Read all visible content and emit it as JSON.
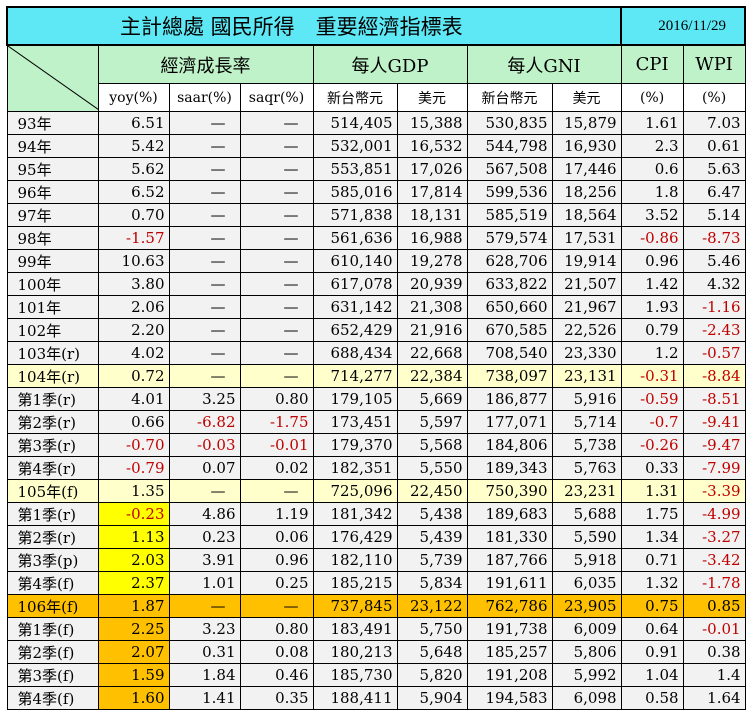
{
  "title": "主計總處 國民所得　重要經濟指標表",
  "date": "2016/11/29",
  "header1": [
    "經濟成長率",
    "每人GDP",
    "每人GNI",
    "CPI",
    "WPI"
  ],
  "header2": [
    "yoy(%)",
    "saar(%)",
    "saqr(%)",
    "新台幣元",
    "美元",
    "新台幣元",
    "美元",
    "(%)",
    "(%)"
  ],
  "rows": [
    {
      "label": "93年",
      "cells": [
        "6.51",
        "—",
        "—",
        "514,405",
        "15,388",
        "530,835",
        "15,879",
        "1.61",
        "7.03"
      ]
    },
    {
      "label": "94年",
      "cells": [
        "5.42",
        "—",
        "—",
        "532,001",
        "16,532",
        "544,798",
        "16,930",
        "2.3",
        "0.61"
      ]
    },
    {
      "label": "95年",
      "cells": [
        "5.62",
        "—",
        "—",
        "553,851",
        "17,026",
        "567,508",
        "17,446",
        "0.6",
        "5.63"
      ]
    },
    {
      "label": "96年",
      "cells": [
        "6.52",
        "—",
        "—",
        "585,016",
        "17,814",
        "599,536",
        "18,256",
        "1.8",
        "6.47"
      ]
    },
    {
      "label": "97年",
      "cells": [
        "0.70",
        "—",
        "—",
        "571,838",
        "18,131",
        "585,519",
        "18,564",
        "3.52",
        "5.14"
      ]
    },
    {
      "label": "98年",
      "cells": [
        "-1.57",
        "—",
        "—",
        "561,636",
        "16,988",
        "579,574",
        "17,531",
        "-0.86",
        "-8.73"
      ]
    },
    {
      "label": "99年",
      "cells": [
        "10.63",
        "—",
        "—",
        "610,140",
        "19,278",
        "628,706",
        "19,914",
        "0.96",
        "5.46"
      ]
    },
    {
      "label": "100年",
      "cells": [
        "3.80",
        "—",
        "—",
        "617,078",
        "20,939",
        "633,822",
        "21,507",
        "1.42",
        "4.32"
      ]
    },
    {
      "label": "101年",
      "cells": [
        "2.06",
        "—",
        "—",
        "631,142",
        "21,308",
        "650,660",
        "21,967",
        "1.93",
        "-1.16"
      ]
    },
    {
      "label": "102年",
      "cells": [
        "2.20",
        "—",
        "—",
        "652,429",
        "21,916",
        "670,585",
        "22,526",
        "0.79",
        "-2.43"
      ]
    },
    {
      "label": "103年(r)",
      "cells": [
        "4.02",
        "—",
        "—",
        "688,434",
        "22,668",
        "708,540",
        "23,330",
        "1.2",
        "-0.57"
      ]
    },
    {
      "label": "104年(r)",
      "cells": [
        "0.72",
        "—",
        "—",
        "714,277",
        "22,384",
        "738,097",
        "23,131",
        "-0.31",
        "-8.84"
      ]
    },
    {
      "label": "第1季(r)",
      "cells": [
        "4.01",
        "3.25",
        "0.80",
        "179,105",
        "5,669",
        "186,877",
        "5,916",
        "-0.59",
        "-8.51"
      ]
    },
    {
      "label": "第2季(r)",
      "cells": [
        "0.66",
        "-6.82",
        "-1.75",
        "173,451",
        "5,597",
        "177,071",
        "5,714",
        "-0.7",
        "-9.41"
      ]
    },
    {
      "label": "第3季(r)",
      "cells": [
        "-0.70",
        "-0.03",
        "-0.01",
        "179,370",
        "5,568",
        "184,806",
        "5,738",
        "-0.26",
        "-9.47"
      ]
    },
    {
      "label": "第4季(r)",
      "cells": [
        "-0.79",
        "0.07",
        "0.02",
        "182,351",
        "5,550",
        "189,343",
        "5,763",
        "0.33",
        "-7.99"
      ]
    },
    {
      "label": "105年(f)",
      "cells": [
        "1.35",
        "—",
        "—",
        "725,096",
        "22,450",
        "750,390",
        "23,231",
        "1.31",
        "-3.39"
      ]
    },
    {
      "label": "第1季(r)",
      "cells": [
        "-0.23",
        "4.86",
        "1.19",
        "181,342",
        "5,438",
        "189,683",
        "5,688",
        "1.75",
        "-4.99"
      ]
    },
    {
      "label": "第2季(r)",
      "cells": [
        "1.13",
        "0.23",
        "0.06",
        "176,429",
        "5,439",
        "181,330",
        "5,590",
        "1.34",
        "-3.27"
      ]
    },
    {
      "label": "第3季(p)",
      "cells": [
        "2.03",
        "3.91",
        "0.96",
        "182,110",
        "5,739",
        "187,766",
        "5,918",
        "0.71",
        "-3.42"
      ]
    },
    {
      "label": "第4季(f)",
      "cells": [
        "2.37",
        "1.01",
        "0.25",
        "185,215",
        "5,834",
        "191,611",
        "6,035",
        "1.32",
        "-1.78"
      ]
    },
    {
      "label": "106年(f)",
      "cells": [
        "1.87",
        "—",
        "—",
        "737,845",
        "23,122",
        "762,786",
        "23,905",
        "0.75",
        "0.85"
      ]
    },
    {
      "label": "第1季(f)",
      "cells": [
        "2.25",
        "3.23",
        "0.80",
        "183,491",
        "5,750",
        "191,738",
        "6,009",
        "0.64",
        "-0.01"
      ]
    },
    {
      "label": "第2季(f)",
      "cells": [
        "2.07",
        "0.31",
        "0.08",
        "180,213",
        "5,648",
        "185,257",
        "5,806",
        "0.91",
        "0.38"
      ]
    },
    {
      "label": "第3季(f)",
      "cells": [
        "1.59",
        "1.84",
        "0.46",
        "185,730",
        "5,820",
        "191,208",
        "5,992",
        "1.04",
        "1.4"
      ]
    },
    {
      "label": "第4季(f)",
      "cells": [
        "1.60",
        "1.41",
        "0.35",
        "188,411",
        "5,904",
        "194,583",
        "6,098",
        "0.58",
        "1.64"
      ]
    }
  ],
  "colors": {
    "title_bg": "#5ee8f5",
    "header_bg": "#bff2c8",
    "grey_row": "#f2f2f2",
    "cream_row": "#ffffcc",
    "yellow_cell": "#ffff00",
    "orange": "#ffc000",
    "negative": "#c00000"
  }
}
